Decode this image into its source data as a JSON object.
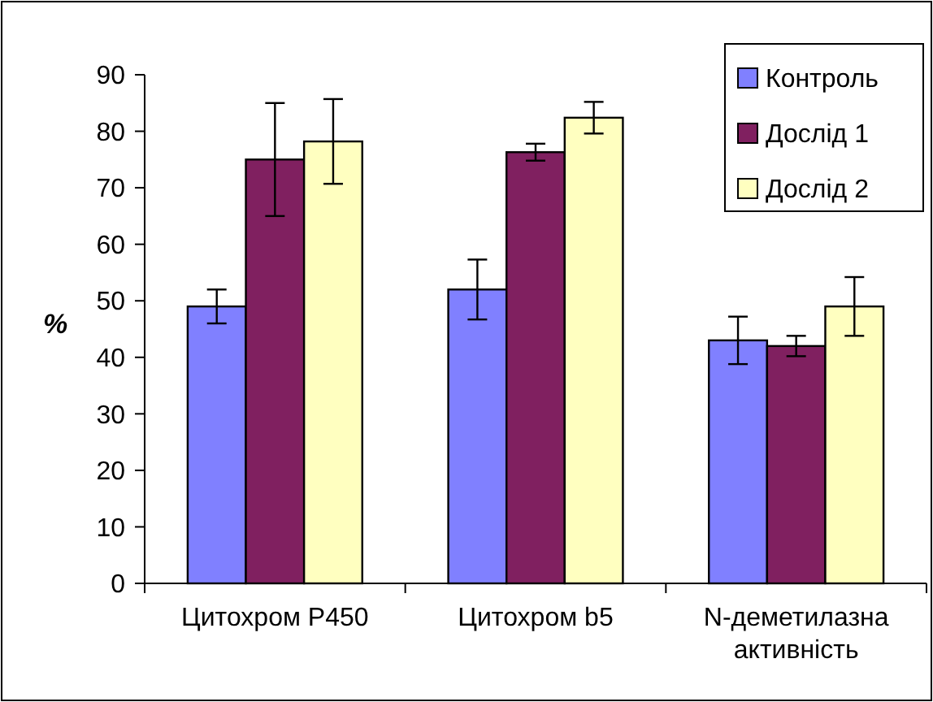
{
  "chart_data": {
    "type": "bar",
    "ylabel": "%",
    "categories": [
      "Цитохром P450",
      "Цитохром b5",
      "N-деметилазна активність"
    ],
    "series": [
      {
        "name": "Контроль",
        "color": "#8080ff",
        "values": [
          49,
          52,
          43
        ],
        "errors": [
          3,
          5.3,
          4.2
        ]
      },
      {
        "name": "Дослід 1",
        "color": "#802060",
        "values": [
          75,
          76.3,
          42
        ],
        "errors": [
          10,
          1.5,
          1.8
        ]
      },
      {
        "name": "Дослід 2",
        "color": "#ffffc0",
        "values": [
          78.2,
          82.4,
          49
        ],
        "errors": [
          7.5,
          2.8,
          5.2
        ]
      }
    ],
    "ylim": [
      0,
      90
    ],
    "yticks": [
      0,
      10,
      20,
      30,
      40,
      50,
      60,
      70,
      80,
      90
    ],
    "legend": "top right",
    "grid": false
  }
}
